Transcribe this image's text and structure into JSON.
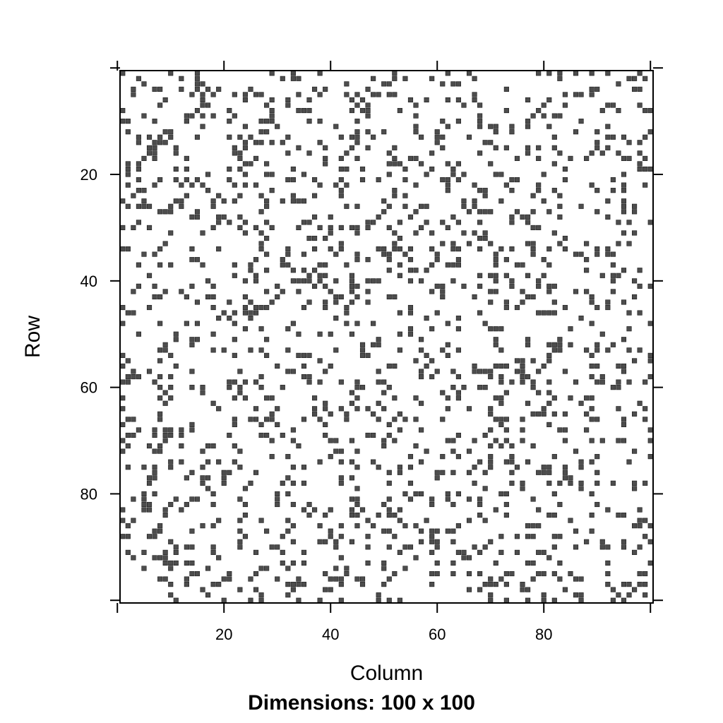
{
  "chart_data": {
    "type": "heatmap",
    "subtitle": "Dimensions: 100 x 100",
    "xlabel": "Column",
    "ylabel": "Row",
    "rows": 100,
    "cols": 100,
    "xlim": [
      0.5,
      100.5
    ],
    "ylim": [
      0.5,
      100.5
    ],
    "y_axis_reversed": true,
    "x_ticks": [
      20,
      40,
      60,
      80
    ],
    "y_ticks": [
      20,
      40,
      60,
      80
    ],
    "x_tick_labels": [
      "20",
      "40",
      "60",
      "80"
    ],
    "y_tick_labels": [
      "20",
      "40",
      "60",
      "80"
    ],
    "nonzero_fraction": 0.16,
    "nonzero_color": "#4d4d4d",
    "background_color": "#ffffff",
    "grid": false
  }
}
